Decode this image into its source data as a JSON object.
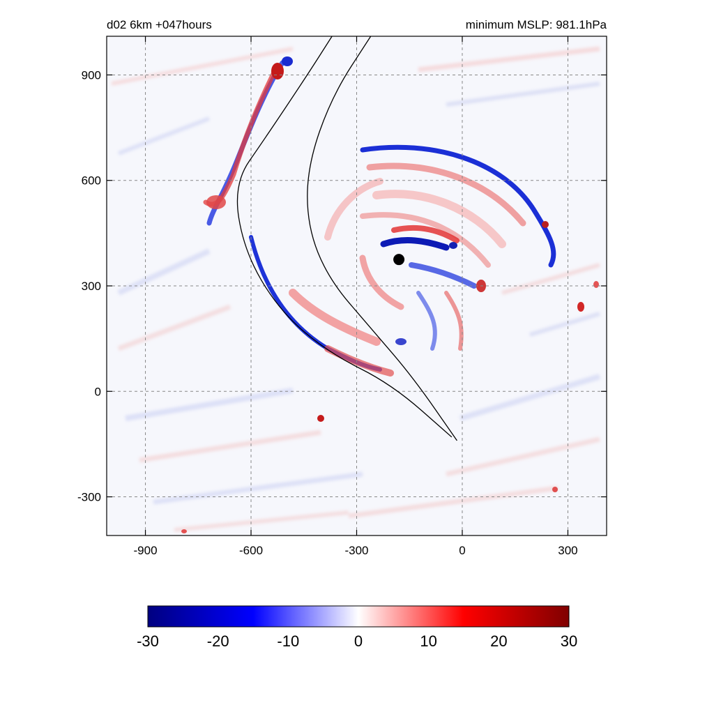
{
  "header": {
    "left": "d02 6km    +047hours",
    "right": "minimum  MSLP: 981.1hPa"
  },
  "chart_data": {
    "type": "heatmap",
    "title": "",
    "xlabel": "",
    "ylabel": "",
    "xlim": [
      -1010,
      410
    ],
    "ylim": [
      -410,
      1010
    ],
    "x_ticks": [
      -900,
      -600,
      -300,
      0,
      300
    ],
    "y_ticks": [
      -300,
      0,
      300,
      600,
      900
    ],
    "x_tick_labels": [
      "-900",
      "-600",
      "-300",
      "0",
      "300"
    ],
    "y_tick_labels": [
      "-300",
      "0",
      "300",
      "600",
      "900"
    ],
    "grid": true,
    "grid_style": "dashed",
    "colorbar": {
      "range": [
        -30,
        30
      ],
      "ticks": [
        "-30",
        "-20",
        "-10",
        "0",
        "10",
        "20",
        "30"
      ],
      "colors": [
        "#000080",
        "#0000ff",
        "#ffffff",
        "#ff0000",
        "#800000"
      ]
    },
    "storm_center": {
      "x": -180,
      "y": 375
    },
    "track_lines": [
      {
        "name": "",
        "points": [
          [
            -370,
            1010
          ],
          [
            -440,
            900
          ],
          [
            -560,
            720
          ],
          [
            -650,
            590
          ],
          [
            -620,
            400
          ],
          [
            -520,
            230
          ],
          [
            -380,
            110
          ],
          [
            -200,
            20
          ],
          [
            -30,
            -130
          ]
        ]
      },
      {
        "name": "",
        "points": [
          [
            -260,
            1010
          ],
          [
            -370,
            840
          ],
          [
            -440,
            640
          ],
          [
            -440,
            470
          ],
          [
            -380,
            320
          ],
          [
            -260,
            180
          ],
          [
            -140,
            40
          ],
          [
            -15,
            -140
          ]
        ]
      }
    ]
  }
}
